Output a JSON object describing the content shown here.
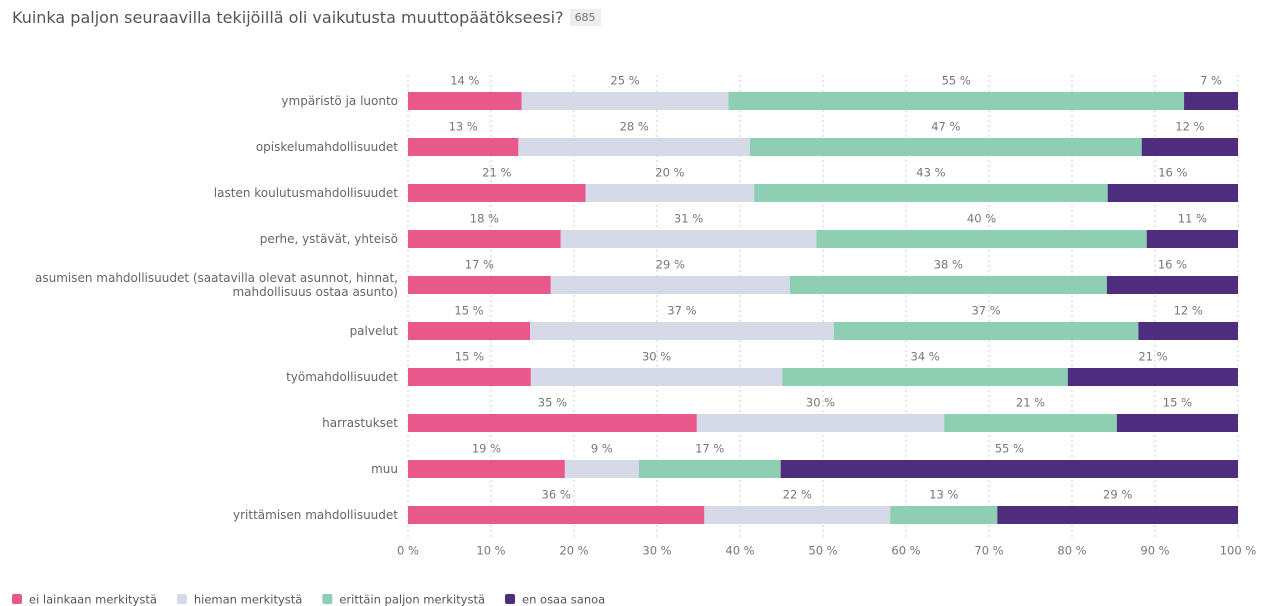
{
  "chart_data": {
    "type": "stacked-bar-horizontal",
    "title": "Kuinka paljon seuraavilla tekijöillä oli vaikutusta muuttopäätökseesi?",
    "badge": 685,
    "categories": [
      "ympäristö ja luonto",
      "opiskelumahdollisuudet",
      "lasten koulutusmahdollisuudet",
      "perhe, ystävät, yhteisö",
      "asumisen mahdollisuudet (saatavilla olevat asunnot, hinnat, mahdollisuus ostaa asunto)",
      "palvelut",
      "työmahdollisuudet",
      "harrastukset",
      "muu",
      "yrittämisen mahdollisuudet"
    ],
    "series": [
      {
        "name": "ei lainkaan merkitystä",
        "color": "#e8588a",
        "values": [
          13.7,
          13.3,
          21.4,
          18.4,
          17.2,
          14.7,
          14.8,
          34.8,
          18.9,
          35.7
        ],
        "value_labels": [
          "14 %",
          "13 %",
          "21 %",
          "18 %",
          "17 %",
          "15 %",
          "15 %",
          "35 %",
          "19 %",
          "36 %"
        ]
      },
      {
        "name": "hieman merkitystä",
        "color": "#d5d9e8",
        "values": [
          24.9,
          27.9,
          20.3,
          30.8,
          28.8,
          36.6,
          30.3,
          29.8,
          8.9,
          22.4
        ],
        "value_labels": [
          "25 %",
          "28 %",
          "20 %",
          "31 %",
          "29 %",
          "37 %",
          "30 %",
          "30 %",
          "9 %",
          "22 %"
        ]
      },
      {
        "name": "erittäin paljon merkitystä",
        "color": "#8ecfb4",
        "values": [
          54.9,
          47.2,
          42.6,
          39.8,
          38.2,
          36.7,
          34.4,
          20.8,
          17.1,
          12.9
        ],
        "value_labels": [
          "55 %",
          "47 %",
          "43 %",
          "40 %",
          "38 %",
          "37 %",
          "34 %",
          "21 %",
          "17 %",
          "13 %"
        ]
      },
      {
        "name": "en osaa sanoa",
        "color": "#4e2d7f",
        "values": [
          6.5,
          11.6,
          15.7,
          11.0,
          15.8,
          12.0,
          20.5,
          14.6,
          55.1,
          29.0
        ],
        "value_labels": [
          "7 %",
          "12 %",
          "16 %",
          "11 %",
          "16 %",
          "12 %",
          "21 %",
          "15 %",
          "55 %",
          "29 %"
        ]
      }
    ],
    "xlim": [
      0,
      100
    ],
    "xticks": [
      {
        "value": 0,
        "label": "0 %"
      },
      {
        "value": 10,
        "label": "10 %"
      },
      {
        "value": 20,
        "label": "20 %"
      },
      {
        "value": 30,
        "label": "30 %"
      },
      {
        "value": 40,
        "label": "40 %"
      },
      {
        "value": 50,
        "label": "50 %"
      },
      {
        "value": 60,
        "label": "60 %"
      },
      {
        "value": 70,
        "label": "70 %"
      },
      {
        "value": 80,
        "label": "80 %"
      },
      {
        "value": 90,
        "label": "90 %"
      },
      {
        "value": 100,
        "label": "100 %"
      }
    ],
    "grid": true,
    "legend": "bottom-left"
  }
}
